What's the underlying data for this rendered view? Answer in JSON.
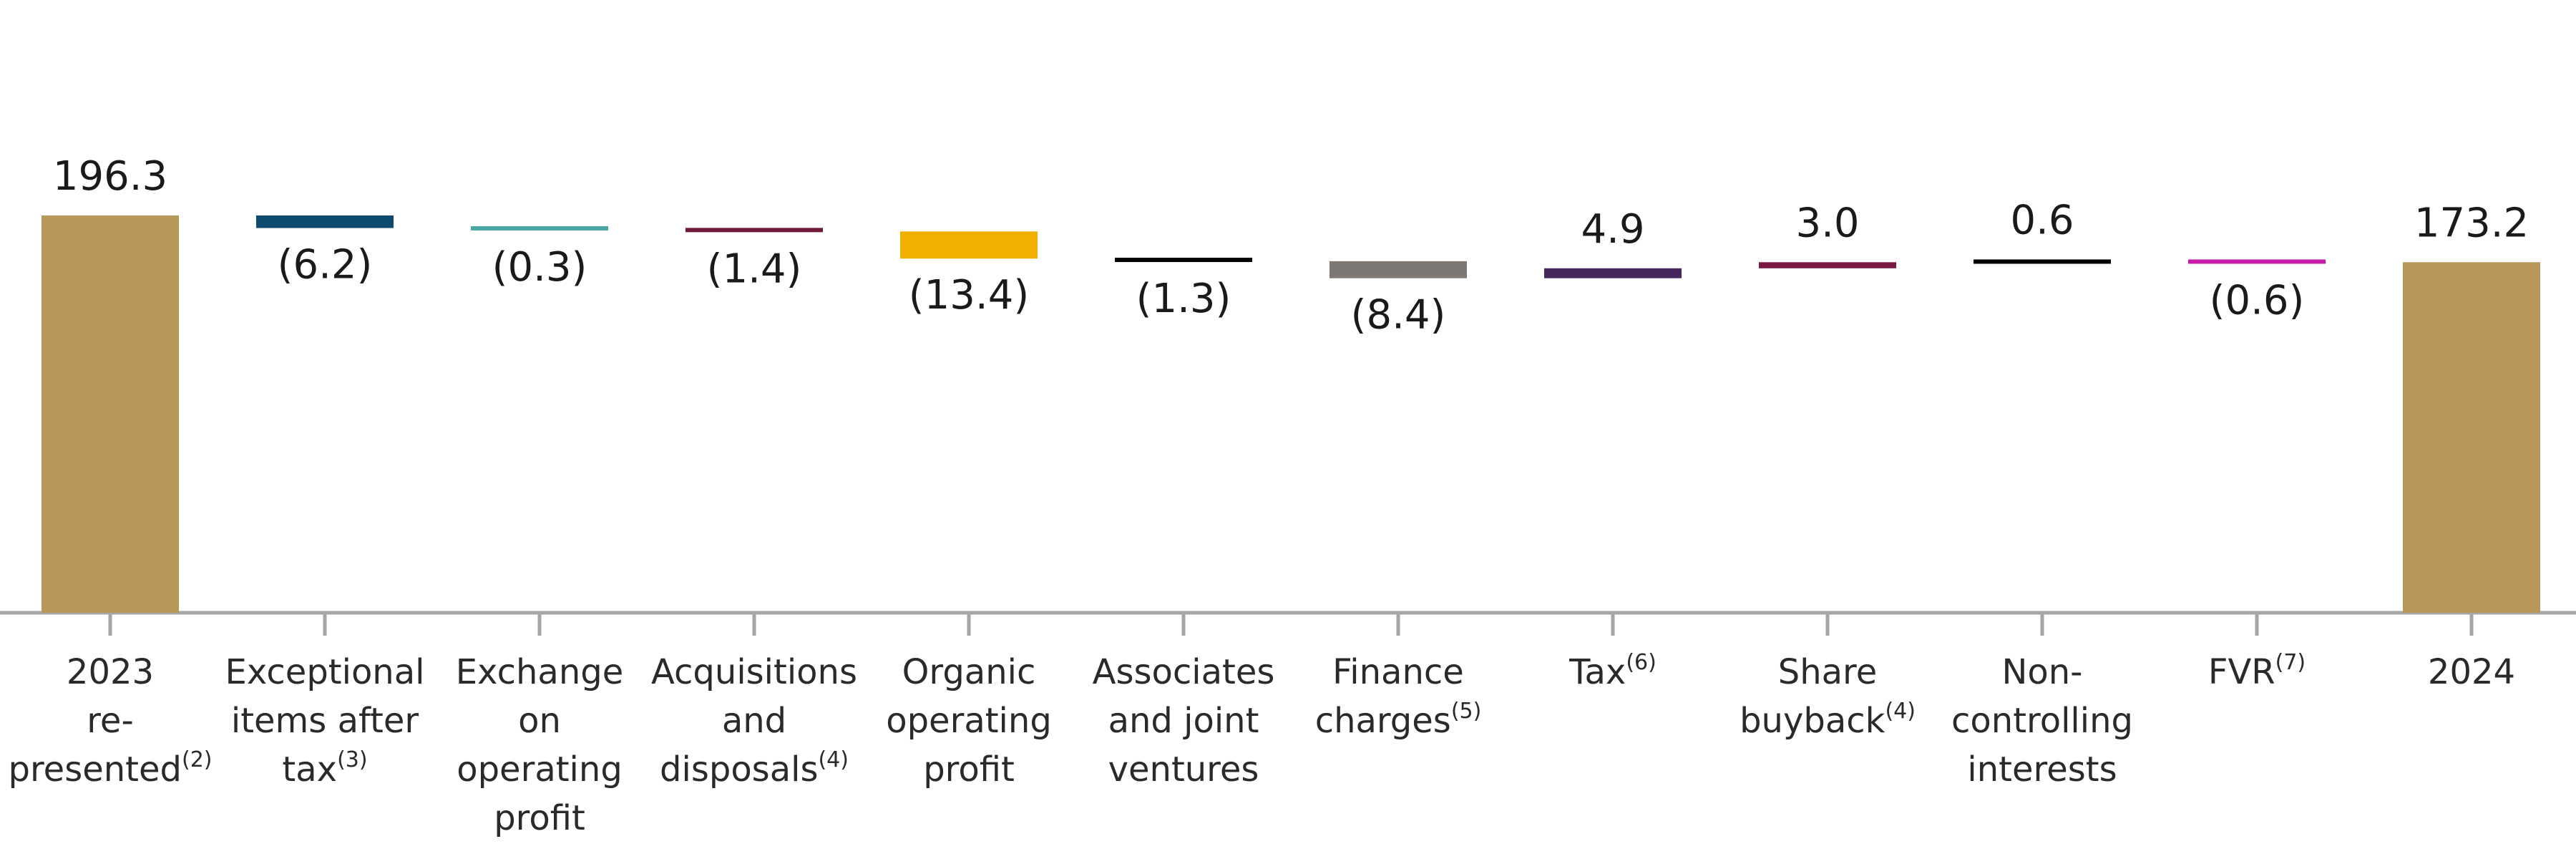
{
  "chart_data": {
    "type": "bar",
    "subtype": "waterfall",
    "title": "",
    "xlabel": "",
    "ylabel": "",
    "ylim": [
      0,
      196.3
    ],
    "grid": false,
    "legend": "none",
    "items": [
      {
        "lines": [
          "2023",
          "re-",
          "presented"
        ],
        "sup": "(2)",
        "label": "196.3",
        "value": 196.3,
        "kind": "total",
        "color": "#b8975a"
      },
      {
        "lines": [
          "Exceptional",
          "items after",
          "tax"
        ],
        "sup": "(3)",
        "label": "(6.2)",
        "value": -6.2,
        "kind": "delta",
        "color": "#0d4a6e"
      },
      {
        "lines": [
          "Exchange",
          "on",
          "operating",
          "profit"
        ],
        "sup": "",
        "label": "(0.3)",
        "value": -0.3,
        "kind": "delta",
        "color": "#4aa8a6"
      },
      {
        "lines": [
          "Acquisitions",
          "and",
          "disposals"
        ],
        "sup": "(4)",
        "label": "(1.4)",
        "value": -1.4,
        "kind": "delta",
        "color": "#6e1a3a"
      },
      {
        "lines": [
          "Organic",
          "operating",
          "profit"
        ],
        "sup": "",
        "label": "(13.4)",
        "value": -13.4,
        "kind": "delta",
        "color": "#f0b000"
      },
      {
        "lines": [
          "Associates",
          "and joint",
          "ventures"
        ],
        "sup": "",
        "label": "(1.3)",
        "value": -1.3,
        "kind": "delta",
        "color": "#000000"
      },
      {
        "lines": [
          "Finance",
          "charges"
        ],
        "sup": "(5)",
        "label": "(8.4)",
        "value": -8.4,
        "kind": "delta",
        "color": "#7d7873"
      },
      {
        "lines": [
          "Tax"
        ],
        "sup": "(6)",
        "label": "4.9",
        "value": 4.9,
        "kind": "delta",
        "color": "#46285e"
      },
      {
        "lines": [
          "Share",
          "buyback"
        ],
        "sup": "(4)",
        "label": "3.0",
        "value": 3.0,
        "kind": "delta",
        "color": "#7a1a44"
      },
      {
        "lines": [
          "Non-",
          "controlling",
          "interests"
        ],
        "sup": "",
        "label": "0.6",
        "value": 0.6,
        "kind": "delta",
        "color": "#000000"
      },
      {
        "lines": [
          "FVR"
        ],
        "sup": "(7)",
        "label": "(0.6)",
        "value": -0.6,
        "kind": "delta",
        "color": "#c81aa8"
      },
      {
        "lines": [
          "2024"
        ],
        "sup": "",
        "label": "173.2",
        "value": 173.2,
        "kind": "total",
        "color": "#b8975a"
      }
    ],
    "axis_color": "#a6a6a6"
  }
}
